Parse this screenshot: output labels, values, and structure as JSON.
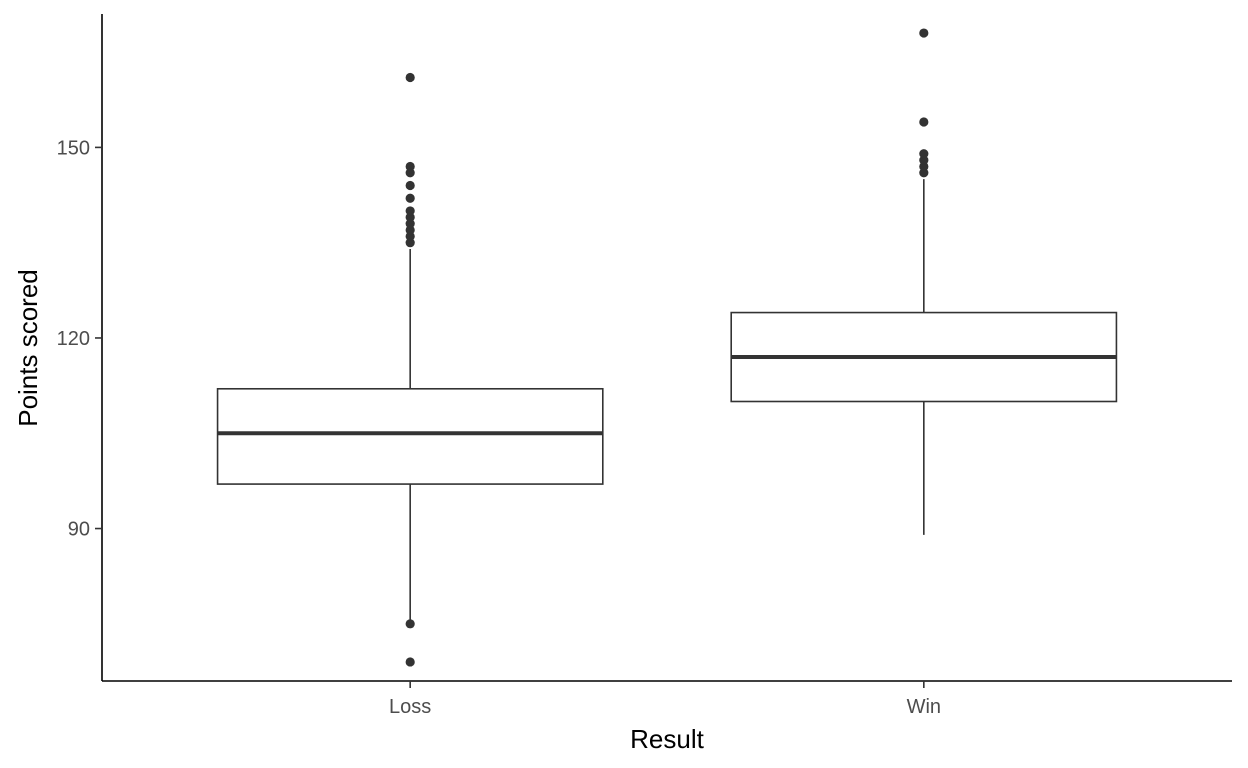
{
  "chart_data": {
    "type": "box",
    "title": "",
    "xlabel": "Result",
    "ylabel": "Points scored",
    "categories": [
      "Loss",
      "Win"
    ],
    "ylim": [
      66,
      171
    ],
    "yticks": [
      90,
      120,
      150
    ],
    "ytick_labels": [
      "90",
      "120",
      "150"
    ],
    "grid": false,
    "legend": "none",
    "boxes": [
      {
        "category": "Loss",
        "whisker_low": 75,
        "q1": 97,
        "median": 105,
        "q3": 112,
        "whisker_high": 134,
        "outliers": [
          69,
          75,
          135,
          136,
          137,
          138,
          139,
          140,
          142,
          144,
          146,
          147,
          161
        ]
      },
      {
        "category": "Win",
        "whisker_low": 89,
        "q1": 110,
        "median": 117,
        "q3": 124,
        "whisker_high": 145,
        "outliers": [
          146,
          147,
          148,
          149,
          154,
          168
        ]
      }
    ],
    "colors": {
      "box_line": "#333333",
      "axis": "#000000",
      "tick_text": "#4d4d4d"
    }
  }
}
